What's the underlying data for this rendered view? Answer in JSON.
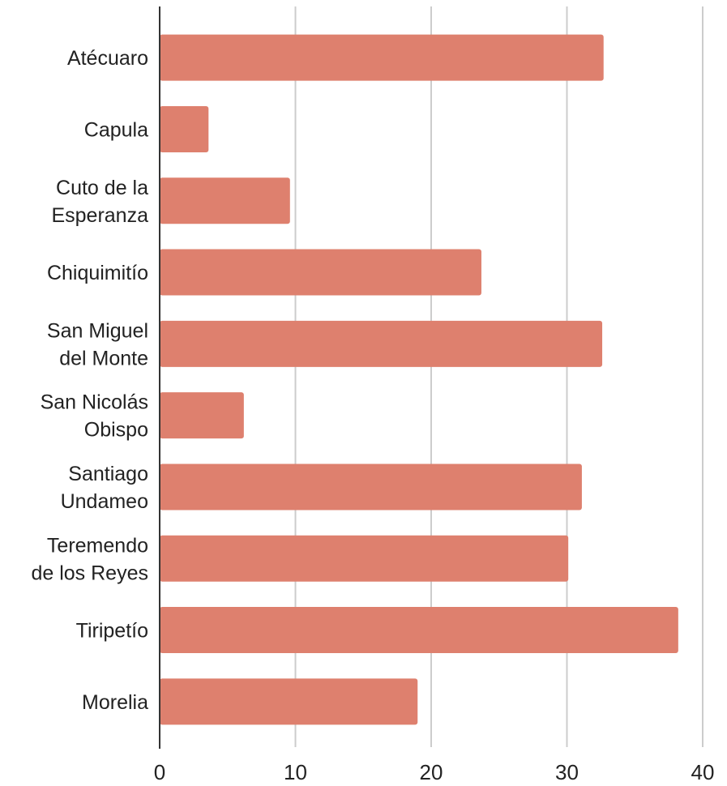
{
  "chart_data": {
    "type": "bar",
    "orientation": "horizontal",
    "categories": [
      [
        "Atécuaro"
      ],
      [
        "Capula"
      ],
      [
        "Cuto de la",
        "Esperanza"
      ],
      [
        "Chiquimitío"
      ],
      [
        "San Miguel",
        "del Monte"
      ],
      [
        "San Nicolás",
        "Obispo"
      ],
      [
        "Santiago",
        "Undameo"
      ],
      [
        "Teremendo",
        "de los Reyes"
      ],
      [
        "Tiripetío"
      ],
      [
        "Morelia"
      ]
    ],
    "values": [
      32.7,
      3.6,
      9.6,
      23.7,
      32.6,
      6.2,
      31.1,
      30.1,
      38.2,
      19.0
    ],
    "xlim": [
      0,
      40
    ],
    "xticks": [
      0,
      10,
      20,
      30,
      40
    ],
    "title": "",
    "xlabel": "",
    "ylabel": "",
    "grid": "vertical",
    "legend": "none",
    "colors": {
      "bar": "#de806e",
      "grid": "#cccccc",
      "axis": "#333333",
      "text": "#222222"
    }
  }
}
